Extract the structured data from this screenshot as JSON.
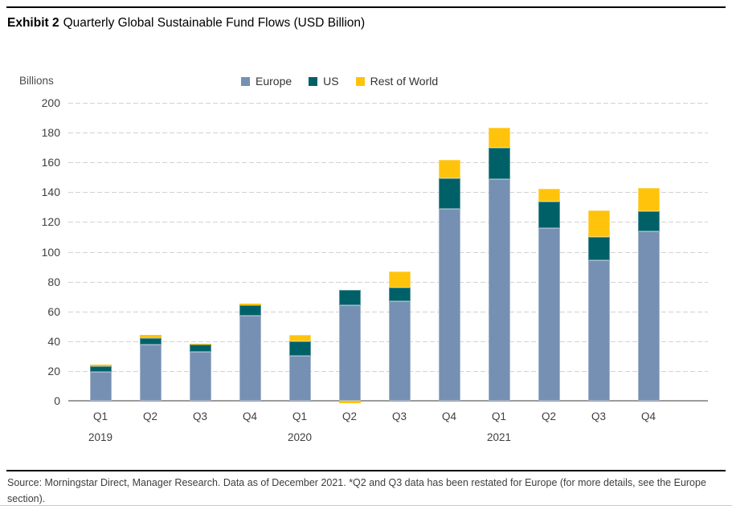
{
  "header": {
    "exhibit_label": "Exhibit 2",
    "title": "Quarterly Global Sustainable Fund Flows (USD Billion)"
  },
  "footer": {
    "source": "Source: Morningstar Direct, Manager Research. Data as of December 2021. *Q2 and Q3 data has been restated for Europe (for more details, see the Europe section)."
  },
  "chart_data": {
    "type": "bar",
    "stacked": true,
    "ylabel": "Billions",
    "ylim": [
      0,
      200
    ],
    "ytick_step": 20,
    "grid": "horizontal dashed",
    "legend_position": "top-center",
    "categories": [
      "Q1",
      "Q2",
      "Q3",
      "Q4",
      "Q1",
      "Q2",
      "Q3",
      "Q4",
      "Q1",
      "Q2",
      "Q3",
      "Q4"
    ],
    "year_groups": [
      {
        "year": "2019",
        "start_index": 0
      },
      {
        "year": "2020",
        "start_index": 4
      },
      {
        "year": "2021",
        "start_index": 8
      }
    ],
    "series": [
      {
        "name": "Europe",
        "color": "#7690B3",
        "values": [
          19.5,
          37.5,
          33,
          57,
          30,
          64,
          67,
          129,
          149,
          116,
          94.5,
          113.5
        ]
      },
      {
        "name": "US",
        "color": "#006068",
        "values": [
          3.5,
          4.5,
          5,
          7,
          10,
          10.5,
          9,
          20.5,
          21,
          17.5,
          15.5,
          13.5
        ]
      },
      {
        "name": "Rest of World",
        "color": "#FFC30B",
        "values": [
          1.5,
          2,
          0.5,
          1,
          4,
          -1.5,
          11,
          12.5,
          13.5,
          9,
          18,
          16
        ]
      }
    ],
    "totals_note": "stacked totals: 24.5, 44, 38.5, 65, 44, 74.5, 87, 162, 183.5, 142.5, 128, 143"
  },
  "colors": {
    "gridline": "#d2d2d2",
    "axis_line": "#9b9b9b",
    "text": "#404040",
    "rule": "#000000"
  }
}
